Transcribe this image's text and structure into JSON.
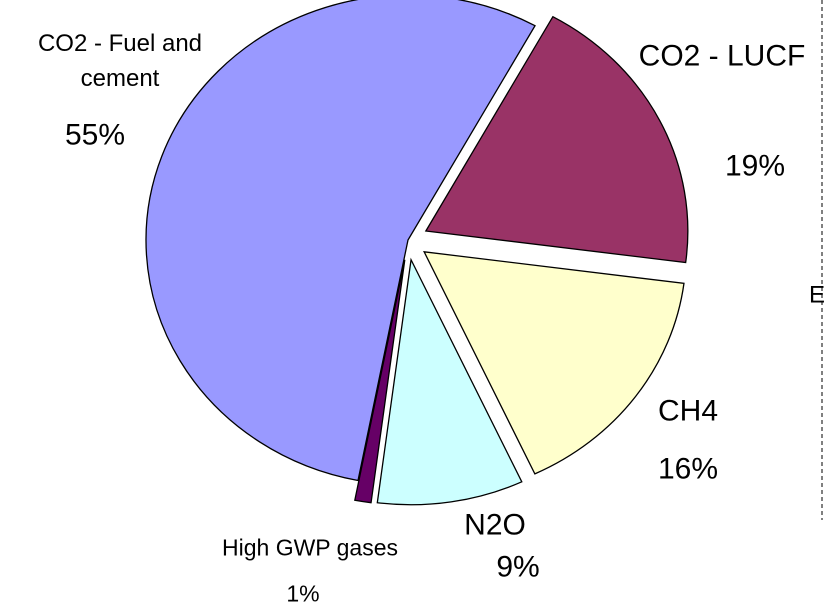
{
  "chart_data": {
    "type": "pie",
    "categories": [
      "CO2 - LUCF",
      "CH4",
      "N2O",
      "High GWP gases",
      "CO2 - Fuel and cement"
    ],
    "values": [
      19,
      16,
      9,
      1,
      55
    ],
    "value_labels": [
      "19%",
      "16%",
      "9%",
      "1%",
      "55%"
    ],
    "colors": [
      "#993366",
      "#ffffcc",
      "#ccffff",
      "#660066",
      "#9999ff"
    ],
    "exploded": [
      true,
      true,
      true,
      true,
      false
    ],
    "fragment_text": "E"
  }
}
